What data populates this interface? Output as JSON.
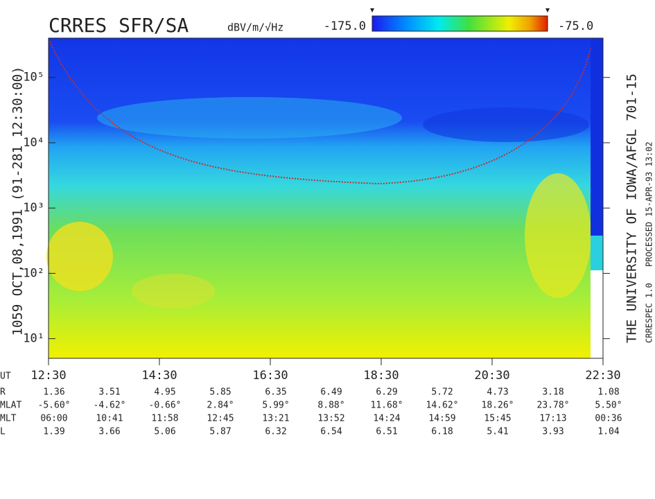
{
  "chart_data": {
    "type": "spectrogram",
    "title": "CRRES SFR/SA",
    "colorbar_label": "dBV/m/√Hz",
    "clim": [
      -175,
      -75
    ],
    "colorbar_ticks": [
      {
        "value": -175,
        "label": "-175.0"
      },
      {
        "value": -75,
        "label": "-75.0"
      }
    ],
    "ylabel": "1059  OCT,08,1991  (91-281 12:30:00)",
    "log_y": true,
    "ylim": [
      5,
      400000
    ],
    "yticks": [
      {
        "value": 10,
        "label": "10¹"
      },
      {
        "value": 100,
        "label": "10²"
      },
      {
        "value": 1000,
        "label": "10³"
      },
      {
        "value": 10000,
        "label": "10⁴"
      },
      {
        "value": 100000,
        "label": "10⁵"
      }
    ],
    "xlim": [
      12.5,
      22.5
    ],
    "xticks": [
      {
        "value": 12.5,
        "label": "12:30"
      },
      {
        "value": 14.5,
        "label": "14:30"
      },
      {
        "value": 16.5,
        "label": "16:30"
      },
      {
        "value": 18.5,
        "label": "18:30"
      },
      {
        "value": 20.5,
        "label": "20:30"
      },
      {
        "value": 22.5,
        "label": "22:30"
      }
    ],
    "xlabel": "UT",
    "ephemeris": [
      {
        "name": "R",
        "values": [
          1.36,
          3.51,
          4.95,
          5.85,
          6.35,
          6.49,
          6.29,
          5.72,
          4.73,
          3.18,
          1.08
        ]
      },
      {
        "name": "MLAT",
        "values": [
          "-5.60°",
          "-4.62°",
          "-0.66°",
          "2.84°",
          "5.99°",
          "8.88°",
          "11.68°",
          "14.62°",
          "18.26°",
          "23.78°",
          "5.50°"
        ]
      },
      {
        "name": "MLT",
        "values": [
          "06:00",
          "10:41",
          "11:58",
          "12:45",
          "13:21",
          "13:52",
          "14:24",
          "14:59",
          "15:45",
          "17:13",
          "00:36"
        ]
      },
      {
        "name": "L",
        "values": [
          1.39,
          3.66,
          5.06,
          5.87,
          6.32,
          6.54,
          6.51,
          6.18,
          5.41,
          3.93,
          1.04
        ]
      }
    ],
    "institution": "THE UNIVERSITY OF IOWA/AFGL 701-15",
    "processed": "PROCESSED 15-APR-93 13:02",
    "software": "CRRESPEC 1.0"
  }
}
